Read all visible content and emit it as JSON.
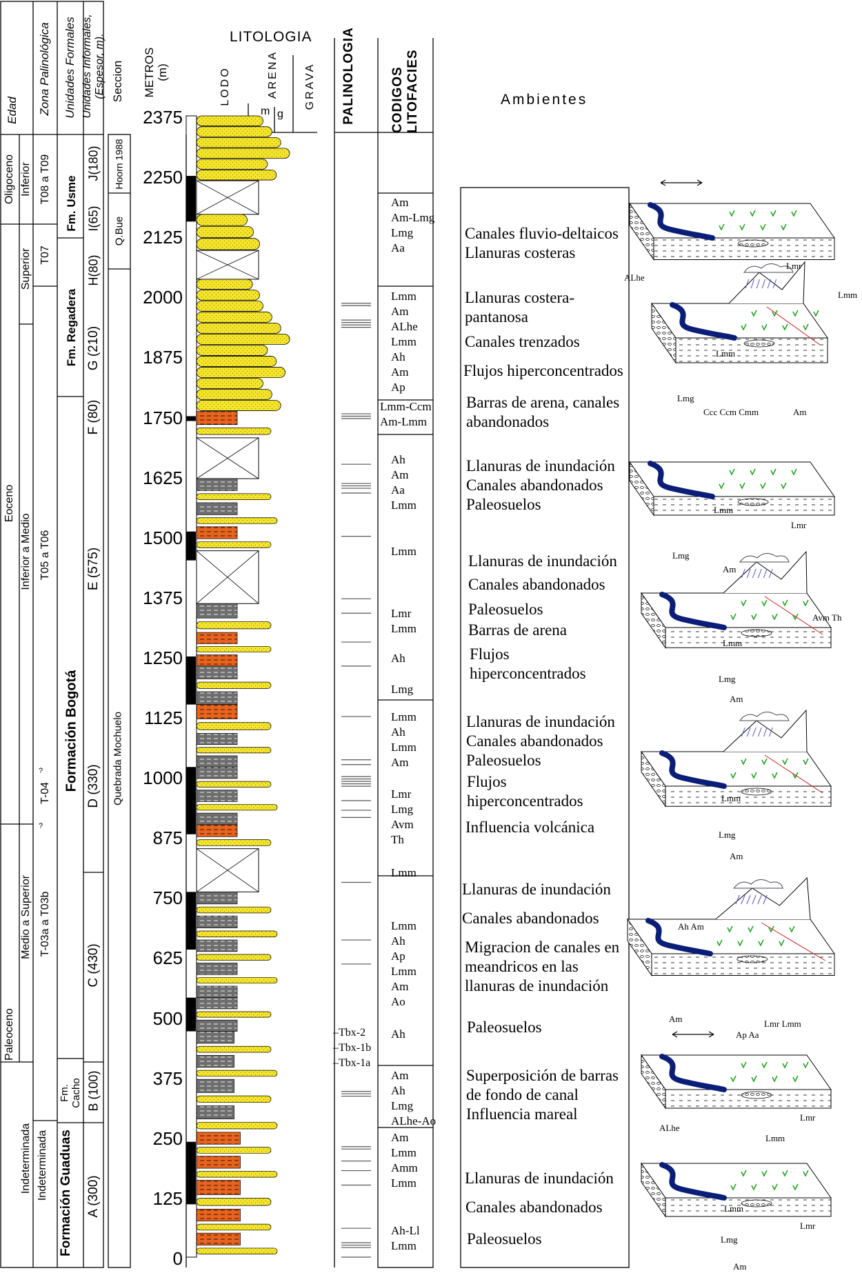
{
  "header": {
    "edad": "Edad",
    "zona_palinologica": "Zona Palinológica",
    "unidades_formales": "Unidades Formales",
    "unidades_informales": "Unidades Informales, (Espesor, m).",
    "seccion": "Seccion",
    "metros": "METROS (m)",
    "litologia": "LITOLOGIA",
    "lodo": "LODO",
    "arena": "ARENA",
    "grava": "GRAVA",
    "grain_m": "m",
    "grain_g": "g",
    "palinologia": "PALINOLOGIA",
    "codigos_litofacies": "CODIGOS LITOFACIES",
    "ambientes": "Ambientes"
  },
  "edad": {
    "oligoceno": "Oligoceno",
    "inferior": "Inferior",
    "superior": "Superior",
    "eoceno": "Eoceno",
    "inferior_a_medio": "Inferior a Medio",
    "medio_a_superior": "Medio a Superior",
    "paleoceno": "Paleoceno",
    "indeterminada_1": "Indeterminada",
    "indeterminada_2": "Indeterminada"
  },
  "zonas": {
    "t08_t09": "T08 a T09",
    "t07": "T07",
    "t05_t06": "T05 a T06",
    "t04": "T-04",
    "q1": "?",
    "q2": "?",
    "t03": "T-03a a T03b"
  },
  "formaciones": {
    "usme": "Fm. Usme",
    "regadera": "Fm. Regadera",
    "bogota": "Formación Bogotá",
    "cacho": "Fm. Cacho",
    "guaduas": "Formación Guaduas"
  },
  "unidades": {
    "j": "J(180)",
    "i": "I(65)",
    "h": "H(80)",
    "g": "G (210)",
    "f": "F (80)",
    "e": "E (575)",
    "d": "D (330)",
    "c": "C (430)",
    "b": "B (100)",
    "a": "A (300)"
  },
  "seccion": {
    "hoorn": "Hoorn 1988",
    "qbue": "Q.Bue",
    "mochuelo": "Quebrada Mochuelo"
  },
  "depth_ticks": [
    "2375",
    "2250",
    "2125",
    "2000",
    "1875",
    "1750",
    "1625",
    "1500",
    "1375",
    "1250",
    "1125",
    "1000",
    "875",
    "750",
    "625",
    "500",
    "375",
    "250",
    "125",
    "0"
  ],
  "tbx": [
    "Tbx-2",
    "Tbx-1b",
    "Tbx-1a"
  ],
  "codigos": [
    [
      "Am",
      "Am-Lmg",
      "Lmg",
      "Aa"
    ],
    [
      "Lmm",
      "Am",
      "ALhe",
      "Lmm",
      "Ah",
      "Am",
      "Ap"
    ],
    [
      "Lmm-Ccm",
      "Am-Lmm"
    ],
    [
      "Ah",
      "Am",
      "Aa",
      "Lmm"
    ],
    [
      "Lmm"
    ],
    [
      "Lmr",
      "Lmm"
    ],
    [
      "Ah"
    ],
    [
      "Lmg"
    ],
    [
      "Lmm",
      "Ah",
      "Lmm",
      "Am"
    ],
    [
      "Lmr",
      "Lmg",
      "Avm",
      "Th"
    ],
    [
      "Lmm"
    ],
    [
      "Lmm",
      "Ah",
      "Ap",
      "Lmm",
      "Am",
      "Ao"
    ],
    [
      "Ah"
    ],
    [
      "Am",
      "Ah",
      "Lmg",
      "ALhe-Ao"
    ],
    [
      "Am",
      "Lmm",
      "Amm",
      "Lmm"
    ],
    [
      "Ah-Ll",
      "Lmm"
    ]
  ],
  "ambientes": [
    [
      "Canales fluvio-deltaicos",
      "Llanuras costeras"
    ],
    [
      "Llanuras costera-",
      "pantanosa"
    ],
    [
      "Canales trenzados"
    ],
    [
      "Flujos hiperconcentrados"
    ],
    [
      "Barras de arena, canales",
      "abandonados"
    ],
    [
      "Llanuras de inundación",
      "Canales abandonados",
      "Paleosuelos"
    ],
    [
      "Llanuras de inundación"
    ],
    [
      "Canales abandonados"
    ],
    [
      "Paleosuelos"
    ],
    [
      "Barras de arena"
    ],
    [
      "Flujos",
      "hiperconcentrados"
    ],
    [
      "Llanuras de inundación",
      "Canales abandonados",
      "Paleosuelos"
    ],
    [
      "Flujos",
      "hiperconcentrados"
    ],
    [
      "Influencia volcánica"
    ],
    [
      "Llanuras de inundación"
    ],
    [
      "Canales abandonados"
    ],
    [
      "Migracion de  canales en",
      "meandricos en las",
      "llanuras de inundación"
    ],
    [
      "Paleosuelos"
    ],
    [
      "Superposición de barras",
      "de fondo de canal",
      "Influencia mareal"
    ],
    [
      "Llanuras de inundación"
    ],
    [
      "Canales abandonados"
    ],
    [
      "Paleosuelos"
    ]
  ],
  "diagram_labels": {
    "d1": [
      "ALhe",
      "Lmr",
      "Lmm"
    ],
    "d2": [
      "Lmm",
      "Lmg",
      "Ccc Ccm Cmm",
      "Am"
    ],
    "d3": [
      "Lmm",
      "Lmr",
      "Lmg",
      "Am"
    ],
    "d4": [
      "Avm Th",
      "Lmm",
      "Lmg",
      "Am"
    ],
    "d5": [
      "Lmm",
      "Lmg",
      "Am"
    ],
    "d6": [
      "Ah Am",
      "Am",
      "Lmr Lmm",
      "Ap Aa"
    ],
    "d7": [
      "ALhe",
      "Lmr",
      "Lmm"
    ],
    "d8": [
      "Lmm",
      "Lmr",
      "Lmg",
      "Am"
    ]
  },
  "colors": {
    "sand": "#f5e52a",
    "mud_orange": "#e8641e",
    "mud_grey": "#6e6e6e",
    "water": "#0a1e78",
    "veg": "#19a019",
    "fault": "#c81e1e"
  }
}
